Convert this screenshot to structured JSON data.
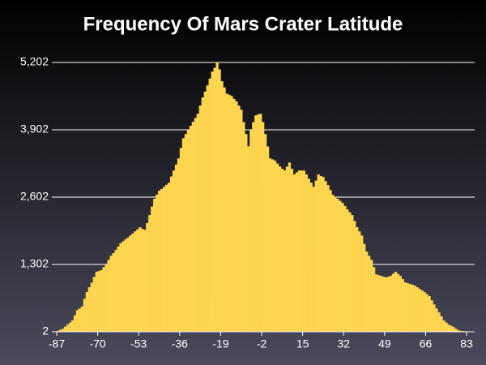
{
  "chart_data": {
    "type": "histogram",
    "title": "Frequency Of Mars Crater Latitude",
    "bins": [
      -87,
      -86,
      -85,
      -84,
      -83,
      -82,
      -81,
      -80,
      -79,
      -78,
      -77,
      -76,
      -75,
      -74,
      -73,
      -72,
      -71,
      -70,
      -69,
      -68,
      -67,
      -66,
      -65,
      -64,
      -63,
      -62,
      -61,
      -60,
      -59,
      -58,
      -57,
      -56,
      -55,
      -54,
      -53,
      -52,
      -51,
      -50,
      -49,
      -48,
      -47,
      -46,
      -45,
      -44,
      -43,
      -42,
      -41,
      -40,
      -39,
      -38,
      -37,
      -36,
      -35,
      -34,
      -33,
      -32,
      -31,
      -30,
      -29,
      -28,
      -27,
      -26,
      -25,
      -24,
      -23,
      -22,
      -21,
      -20,
      -19,
      -18,
      -17,
      -16,
      -15,
      -14,
      -13,
      -12,
      -11,
      -10,
      -9,
      -8,
      -7,
      -6,
      -5,
      -4,
      -3,
      -2,
      -1,
      0,
      1,
      2,
      3,
      4,
      5,
      6,
      7,
      8,
      9,
      10,
      11,
      12,
      13,
      14,
      15,
      16,
      17,
      18,
      19,
      20,
      21,
      22,
      23,
      24,
      25,
      26,
      27,
      28,
      29,
      30,
      31,
      32,
      33,
      34,
      35,
      36,
      37,
      38,
      39,
      40,
      41,
      42,
      43,
      44,
      45,
      46,
      47,
      48,
      49,
      50,
      51,
      52,
      53,
      54,
      55,
      56,
      57,
      58,
      59,
      60,
      61,
      62,
      63,
      64,
      65,
      66,
      67,
      68,
      69,
      70,
      71,
      72,
      73,
      74,
      75,
      76,
      77,
      78,
      79,
      80,
      81,
      82,
      83,
      84,
      85,
      86,
      87
    ],
    "counts": [
      20,
      40,
      60,
      100,
      140,
      180,
      220,
      320,
      420,
      450,
      490,
      640,
      770,
      860,
      950,
      1060,
      1160,
      1175,
      1190,
      1250,
      1315,
      1390,
      1470,
      1520,
      1580,
      1650,
      1710,
      1750,
      1785,
      1820,
      1860,
      1900,
      1940,
      1980,
      2020,
      1990,
      1970,
      2100,
      2255,
      2420,
      2570,
      2650,
      2725,
      2760,
      2800,
      2840,
      2880,
      3000,
      3115,
      3230,
      3350,
      3550,
      3740,
      3820,
      3900,
      3980,
      4055,
      4130,
      4210,
      4370,
      4525,
      4640,
      4760,
      4890,
      5025,
      5100,
      5202,
      5070,
      4840,
      4720,
      4600,
      4580,
      4555,
      4500,
      4450,
      4370,
      4290,
      4050,
      3820,
      3585,
      3900,
      4050,
      4180,
      4200,
      4210,
      4050,
      3820,
      3580,
      3350,
      3330,
      3305,
      3250,
      3195,
      3150,
      3115,
      3190,
      3270,
      3150,
      3040,
      3080,
      3115,
      3115,
      3115,
      3040,
      2960,
      2880,
      2800,
      2920,
      3040,
      3010,
      2990,
      2910,
      2835,
      2740,
      2645,
      2610,
      2570,
      2530,
      2490,
      2430,
      2365,
      2310,
      2255,
      2140,
      2020,
      1940,
      1860,
      1700,
      1550,
      1470,
      1390,
      1250,
      1110,
      1095,
      1080,
      1065,
      1050,
      1065,
      1080,
      1120,
      1160,
      1120,
      1080,
      1020,
      955,
      940,
      925,
      910,
      890,
      860,
      830,
      800,
      770,
      730,
      690,
      610,
      530,
      450,
      375,
      300,
      220,
      180,
      140,
      120,
      95,
      60,
      30,
      20,
      15,
      12,
      10,
      6,
      4,
      2
    ],
    "color": "#fdd54f",
    "xlim": [
      -87,
      87
    ],
    "xticks": [
      -87,
      -70,
      -53,
      -36,
      -19,
      -2,
      15,
      32,
      49,
      66,
      83
    ],
    "ylim": [
      2,
      5202
    ],
    "yticks": [
      2,
      {
        "value": 1302,
        "label": "1,302"
      },
      {
        "value": 2602,
        "label": "2,602"
      },
      {
        "value": 3902,
        "label": "3,902"
      },
      {
        "value": 5202,
        "label": "5,202"
      }
    ],
    "grid": true
  }
}
